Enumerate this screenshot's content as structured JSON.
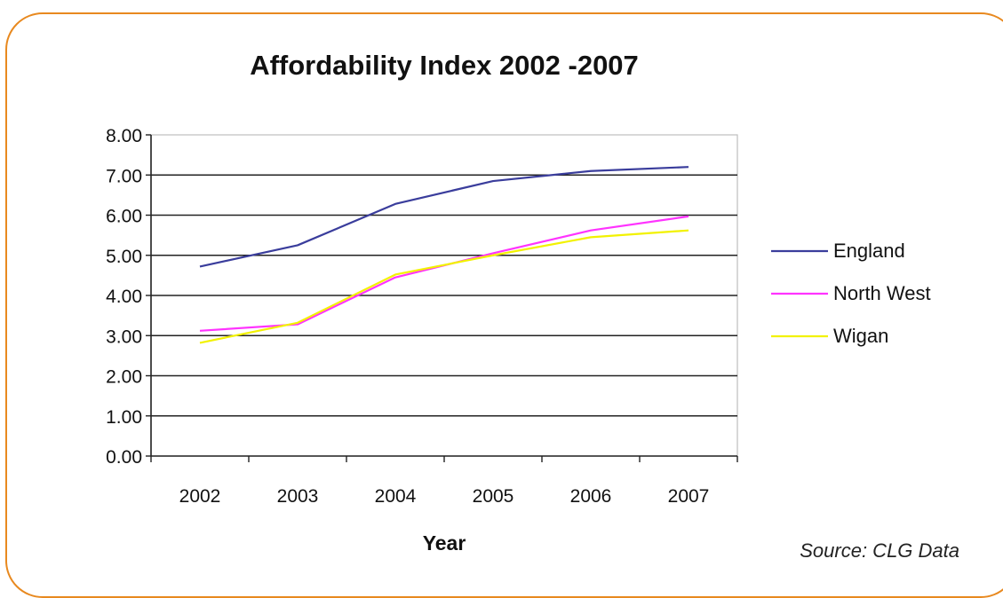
{
  "chart_data": {
    "type": "line",
    "title": "Affordability Index 2002 -2007",
    "xlabel": "Year",
    "ylabel": "",
    "categories": [
      "2002",
      "2003",
      "2004",
      "2005",
      "2006",
      "2007"
    ],
    "y_ticks": [
      "0.00",
      "1.00",
      "2.00",
      "3.00",
      "4.00",
      "5.00",
      "6.00",
      "7.00",
      "8.00"
    ],
    "ylim": [
      0,
      8
    ],
    "grid": "horizontal",
    "legend_position": "right",
    "series": [
      {
        "name": "England",
        "color": "#3a3d9c",
        "values": [
          4.72,
          5.25,
          6.28,
          6.85,
          7.1,
          7.2
        ]
      },
      {
        "name": "North West",
        "color": "#ff33ff",
        "values": [
          3.12,
          3.28,
          4.45,
          5.05,
          5.62,
          5.97
        ]
      },
      {
        "name": "Wigan",
        "color": "#f2f200",
        "values": [
          2.82,
          3.32,
          4.52,
          5.0,
          5.45,
          5.62
        ]
      }
    ],
    "source": "Source: CLG Data"
  }
}
